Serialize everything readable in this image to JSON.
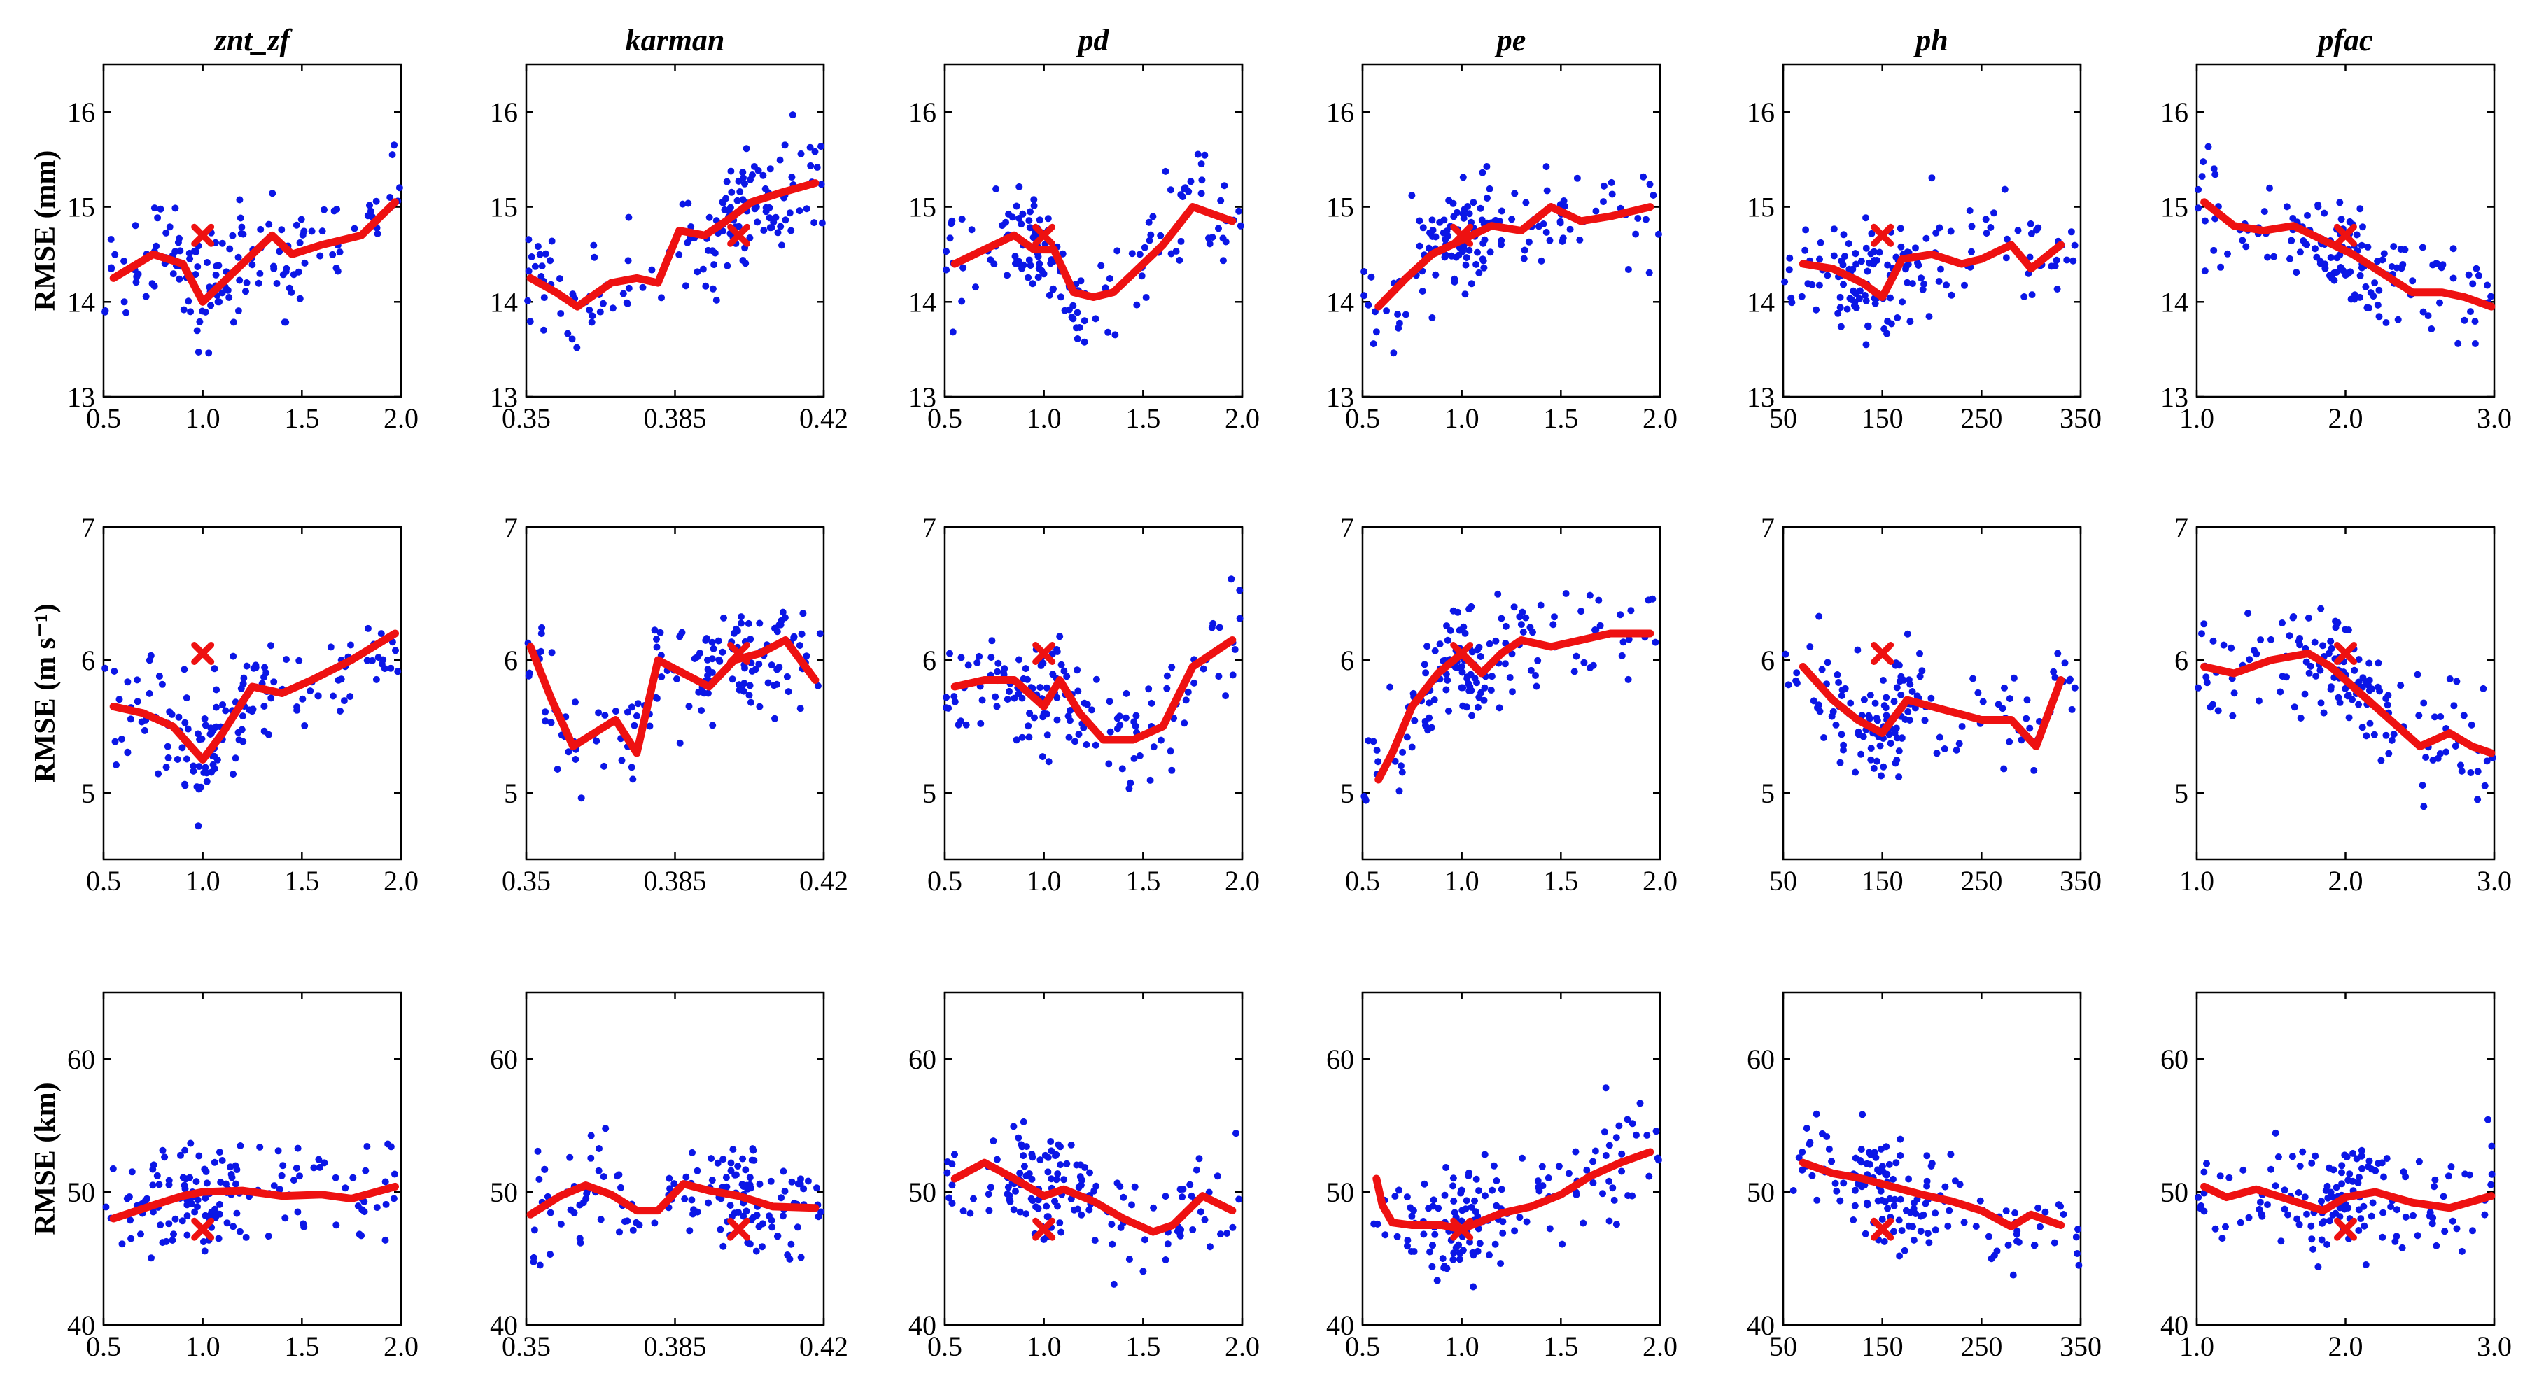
{
  "colors": {
    "points": "#0b16e6",
    "trend": "#ee1111",
    "axes": "#000000"
  },
  "row_ylabels": [
    "RMSE (mm)",
    "RMSE (m s⁻¹)",
    "RMSE (km)"
  ],
  "rows": [
    {
      "ylim": [
        13,
        16.5
      ],
      "yticks": [
        13,
        14,
        15,
        16
      ],
      "ytick_labels": [
        "13",
        "14",
        "15",
        "16"
      ]
    },
    {
      "ylim": [
        4.5,
        7
      ],
      "yticks": [
        5,
        6,
        7
      ],
      "ytick_labels": [
        "5",
        "6",
        "7"
      ]
    },
    {
      "ylim": [
        40,
        65
      ],
      "yticks": [
        40,
        50,
        60
      ],
      "ytick_labels": [
        "40",
        "50",
        "60"
      ]
    }
  ],
  "chart_data": [
    {
      "type": "scatter",
      "title": "znt_zf",
      "xlim": [
        0.5,
        2.0
      ],
      "xticks": [
        0.5,
        1.0,
        1.5,
        2.0
      ],
      "xtick_labels": [
        "0.5",
        "1.0",
        "1.5",
        "2.0"
      ],
      "default_x": 1.0,
      "trend": [
        {
          "x": [
            0.55,
            0.75,
            0.9,
            1.0,
            1.1,
            1.35,
            1.45,
            1.6,
            1.8,
            1.97
          ],
          "y": [
            14.25,
            14.5,
            14.4,
            14.0,
            14.2,
            14.7,
            14.5,
            14.6,
            14.7,
            15.05
          ]
        },
        {
          "x": [
            0.55,
            0.7,
            0.85,
            1.0,
            1.1,
            1.25,
            1.4,
            1.55,
            1.75,
            1.97
          ],
          "y": [
            5.65,
            5.6,
            5.5,
            5.25,
            5.45,
            5.8,
            5.75,
            5.85,
            6.0,
            6.2
          ]
        },
        {
          "x": [
            0.55,
            0.75,
            0.9,
            1.0,
            1.2,
            1.4,
            1.6,
            1.75,
            1.97
          ],
          "y": [
            48,
            49,
            49.7,
            50,
            50.1,
            49.7,
            49.8,
            49.5,
            50.4
          ]
        }
      ],
      "default_value": [
        14.7,
        6.05,
        47.2
      ],
      "points_note": "random sample approximating the blue scatter"
    },
    {
      "type": "scatter",
      "title": "karman",
      "xlim": [
        0.35,
        0.42
      ],
      "xticks": [
        0.35,
        0.385,
        0.42
      ],
      "xtick_labels": [
        "0.35",
        "0.385",
        "0.42"
      ],
      "default_x": 0.4,
      "trend": [
        {
          "x": [
            0.351,
            0.357,
            0.362,
            0.37,
            0.376,
            0.381,
            0.386,
            0.392,
            0.397,
            0.403,
            0.41,
            0.418
          ],
          "y": [
            14.25,
            14.1,
            13.95,
            14.2,
            14.25,
            14.2,
            14.75,
            14.7,
            14.85,
            15.05,
            15.15,
            15.25
          ]
        },
        {
          "x": [
            0.351,
            0.356,
            0.361,
            0.366,
            0.371,
            0.376,
            0.381,
            0.387,
            0.393,
            0.399,
            0.405,
            0.411,
            0.418
          ],
          "y": [
            6.1,
            5.7,
            5.35,
            5.45,
            5.55,
            5.3,
            6.0,
            5.9,
            5.8,
            6.0,
            6.05,
            6.15,
            5.85
          ]
        },
        {
          "x": [
            0.351,
            0.358,
            0.364,
            0.37,
            0.376,
            0.381,
            0.387,
            0.393,
            0.4,
            0.408,
            0.418
          ],
          "y": [
            48.3,
            49.7,
            50.5,
            49.8,
            48.6,
            48.6,
            50.6,
            50.1,
            49.7,
            48.9,
            48.8
          ]
        }
      ],
      "default_value": [
        14.7,
        6.05,
        47.2
      ],
      "points_note": "random sample approximating the blue scatter"
    },
    {
      "type": "scatter",
      "title": "pd",
      "xlim": [
        0.5,
        2.0
      ],
      "xticks": [
        0.5,
        1.0,
        1.5,
        2.0
      ],
      "xtick_labels": [
        "0.5",
        "1.0",
        "1.5",
        "2.0"
      ],
      "default_x": 1.0,
      "trend": [
        {
          "x": [
            0.55,
            0.7,
            0.85,
            0.95,
            1.05,
            1.15,
            1.25,
            1.35,
            1.45,
            1.6,
            1.75,
            1.95
          ],
          "y": [
            14.4,
            14.55,
            14.7,
            14.55,
            14.55,
            14.1,
            14.05,
            14.1,
            14.3,
            14.6,
            15.0,
            14.85
          ]
        },
        {
          "x": [
            0.55,
            0.7,
            0.85,
            1.0,
            1.08,
            1.18,
            1.3,
            1.45,
            1.6,
            1.75,
            1.95
          ],
          "y": [
            5.8,
            5.85,
            5.85,
            5.65,
            5.85,
            5.6,
            5.4,
            5.4,
            5.5,
            5.95,
            6.15
          ]
        },
        {
          "x": [
            0.55,
            0.7,
            0.85,
            1.0,
            1.1,
            1.25,
            1.4,
            1.55,
            1.65,
            1.8,
            1.95
          ],
          "y": [
            51,
            52.2,
            51,
            49.7,
            50.2,
            49.3,
            48,
            47,
            47.5,
            49.7,
            48.6
          ]
        }
      ],
      "default_value": [
        14.7,
        6.05,
        47.2
      ],
      "points_note": "random sample approximating the blue scatter"
    },
    {
      "type": "scatter",
      "title": "pe",
      "xlim": [
        0.5,
        2.0
      ],
      "xticks": [
        0.5,
        1.0,
        1.5,
        2.0
      ],
      "xtick_labels": [
        "0.5",
        "1.0",
        "1.5",
        "2.0"
      ],
      "default_x": 1.0,
      "trend": [
        {
          "x": [
            0.58,
            0.72,
            0.85,
            1.0,
            1.15,
            1.3,
            1.45,
            1.6,
            1.75,
            1.95
          ],
          "y": [
            13.95,
            14.25,
            14.5,
            14.65,
            14.8,
            14.75,
            15.0,
            14.85,
            14.9,
            15.0
          ]
        },
        {
          "x": [
            0.58,
            0.65,
            0.75,
            0.88,
            1.0,
            1.1,
            1.2,
            1.3,
            1.45,
            1.6,
            1.75,
            1.95
          ],
          "y": [
            5.1,
            5.3,
            5.65,
            5.9,
            6.05,
            5.9,
            6.05,
            6.15,
            6.1,
            6.15,
            6.2,
            6.2
          ]
        },
        {
          "x": [
            0.57,
            0.6,
            0.65,
            0.75,
            0.9,
            1.0,
            1.1,
            1.2,
            1.35,
            1.5,
            1.65,
            1.8,
            1.95
          ],
          "y": [
            51,
            49,
            47.7,
            47.5,
            47.5,
            47.2,
            47.8,
            48.4,
            48.9,
            49.8,
            51.2,
            52.2,
            53
          ]
        }
      ],
      "default_value": [
        14.7,
        6.05,
        47.2
      ],
      "points_note": "random sample approximating the blue scatter"
    },
    {
      "type": "scatter",
      "title": "ph",
      "xlim": [
        50,
        350
      ],
      "xticks": [
        50,
        150,
        250,
        350
      ],
      "xtick_labels": [
        "50",
        "150",
        "250",
        "350"
      ],
      "default_x": 150,
      "trend": [
        {
          "x": [
            70,
            100,
            130,
            150,
            170,
            200,
            230,
            250,
            280,
            300,
            330
          ],
          "y": [
            14.4,
            14.35,
            14.2,
            14.05,
            14.45,
            14.5,
            14.4,
            14.45,
            14.6,
            14.35,
            14.6
          ]
        },
        {
          "x": [
            70,
            100,
            125,
            150,
            175,
            200,
            225,
            250,
            280,
            305,
            330
          ],
          "y": [
            5.95,
            5.7,
            5.55,
            5.45,
            5.7,
            5.65,
            5.6,
            5.55,
            5.55,
            5.35,
            5.85
          ]
        },
        {
          "x": [
            70,
            100,
            130,
            160,
            190,
            220,
            250,
            280,
            300,
            330
          ],
          "y": [
            52.2,
            51.4,
            51,
            50.4,
            49.8,
            49.3,
            48.6,
            47.4,
            48.3,
            47.5
          ]
        }
      ],
      "default_value": [
        14.7,
        6.05,
        47.2
      ],
      "points_note": "random sample approximating the blue scatter"
    },
    {
      "type": "scatter",
      "title": "pfac",
      "xlim": [
        1.0,
        3.0
      ],
      "xticks": [
        1.0,
        2.0,
        3.0
      ],
      "xtick_labels": [
        "1.0",
        "2.0",
        "3.0"
      ],
      "default_x": 2.0,
      "trend": [
        {
          "x": [
            1.05,
            1.25,
            1.45,
            1.65,
            1.85,
            2.05,
            2.25,
            2.45,
            2.65,
            2.8,
            2.98
          ],
          "y": [
            15.05,
            14.8,
            14.75,
            14.8,
            14.65,
            14.5,
            14.3,
            14.1,
            14.1,
            14.05,
            13.95
          ]
        },
        {
          "x": [
            1.05,
            1.25,
            1.5,
            1.75,
            1.9,
            2.05,
            2.25,
            2.5,
            2.7,
            2.85,
            2.98
          ],
          "y": [
            5.95,
            5.9,
            6.0,
            6.05,
            5.95,
            5.8,
            5.6,
            5.35,
            5.45,
            5.35,
            5.3
          ]
        },
        {
          "x": [
            1.05,
            1.2,
            1.4,
            1.6,
            1.85,
            2.0,
            2.2,
            2.45,
            2.7,
            2.98
          ],
          "y": [
            50.4,
            49.6,
            50.2,
            49.5,
            48.6,
            49.6,
            50,
            49.2,
            48.8,
            49.7
          ]
        }
      ],
      "default_value": [
        14.7,
        6.05,
        47.2
      ],
      "points_note": "random sample approximating the blue scatter"
    }
  ]
}
